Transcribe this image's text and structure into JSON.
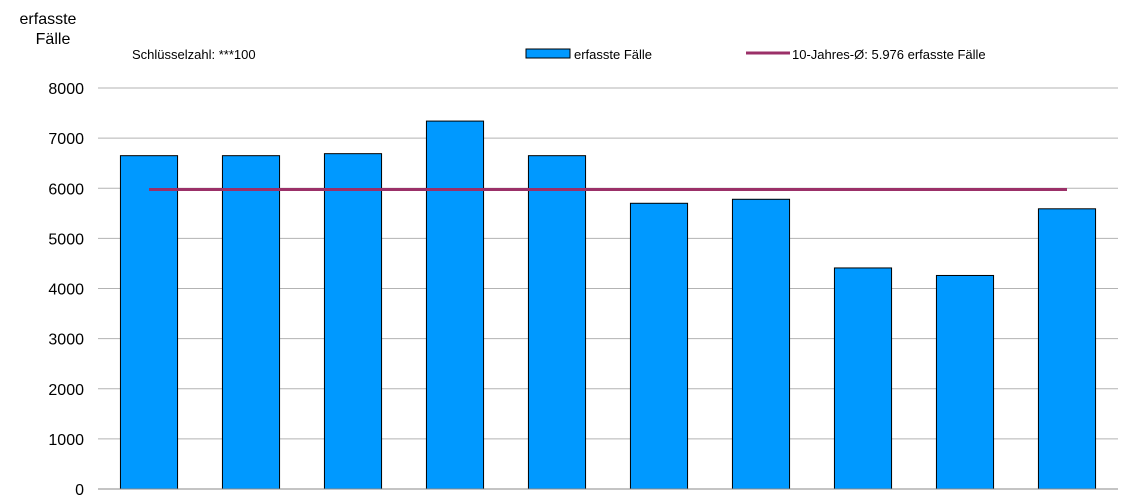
{
  "chart_data": {
    "type": "bar",
    "ylabel_lines": [
      "erfasste",
      "Fälle"
    ],
    "note": "Schlüsselzahl: ***100",
    "categories": [
      "",
      "",
      "",
      "",
      "",
      "",
      "",
      "",
      "",
      ""
    ],
    "series": [
      {
        "name": "erfasste Fälle",
        "type": "bar",
        "color": "#0099FF",
        "values": [
          6650,
          6650,
          6690,
          7340,
          6650,
          5700,
          5780,
          4410,
          4260,
          5590
        ]
      },
      {
        "name": "10-Jahres-Ø: 5.976 erfasste Fälle",
        "type": "line",
        "color": "#9B3068",
        "value": 5976
      }
    ],
    "ylim": [
      0,
      8000
    ],
    "yticks": [
      "0",
      "1000",
      "2000",
      "3000",
      "4000",
      "5000",
      "6000",
      "7000",
      "8000"
    ],
    "grid": true,
    "legend": "top"
  }
}
